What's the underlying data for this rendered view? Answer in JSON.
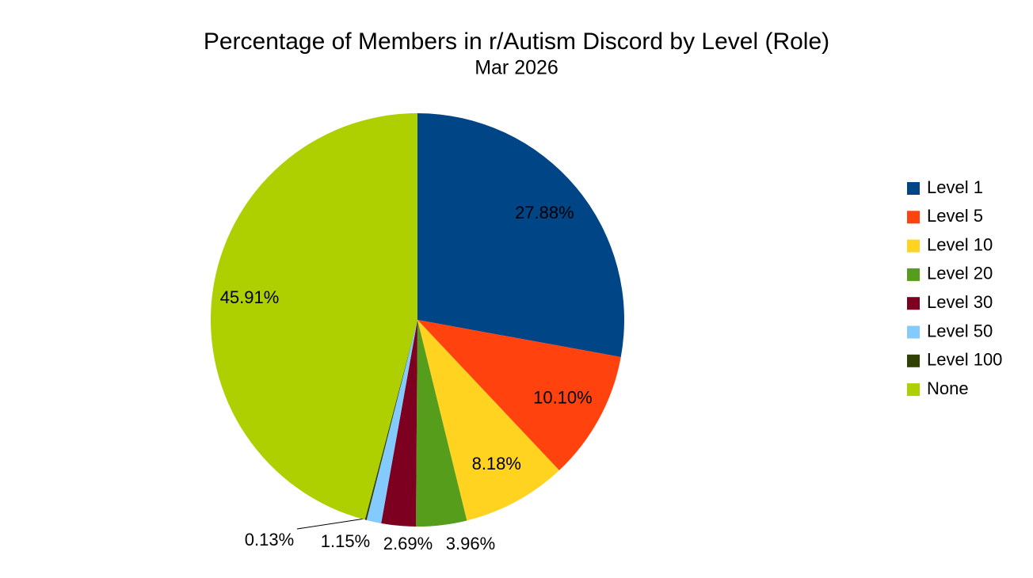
{
  "chart_data": {
    "type": "pie",
    "title": "Percentage of Members in r/Autism Discord by Level (Role)",
    "subtitle": "Mar 2026",
    "categories": [
      "Level 1",
      "Level 5",
      "Level 10",
      "Level 20",
      "Level 30",
      "Level 50",
      "Level 100",
      "None"
    ],
    "values": [
      27.88,
      10.1,
      8.18,
      3.96,
      2.69,
      1.15,
      0.13,
      45.91
    ],
    "value_labels": [
      "27.88%",
      "10.10%",
      "8.18%",
      "3.96%",
      "2.69%",
      "1.15%",
      "0.13%",
      "45.91%"
    ],
    "colors": [
      "#004586",
      "#ff420e",
      "#ffd320",
      "#579d1c",
      "#7e0021",
      "#83caff",
      "#314004",
      "#aecf00"
    ],
    "legend": "right"
  }
}
